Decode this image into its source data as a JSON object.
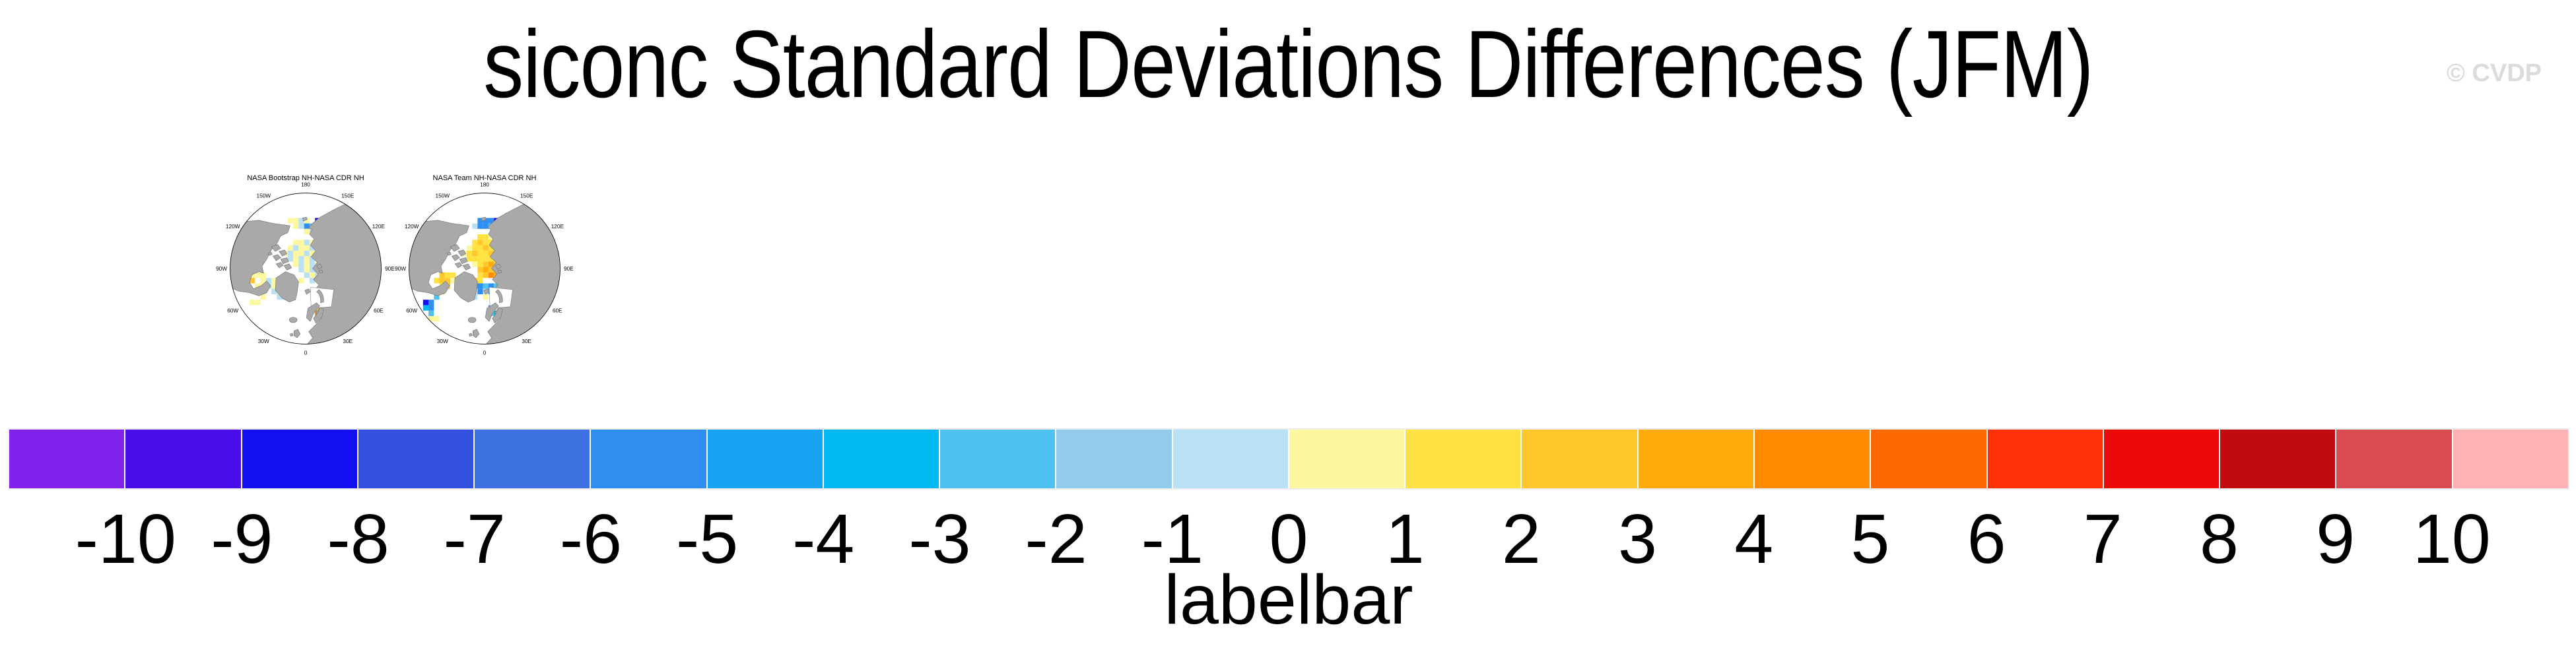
{
  "header": {
    "title": "siconc Standard Deviations Differences (JFM)",
    "watermark": "© CVDP"
  },
  "maps": [
    {
      "title": "NASA Bootstrap NH-NASA CDR NH",
      "ring_labels": [
        "180",
        "150E",
        "120E",
        "90E",
        "60E",
        "30E",
        "0",
        "30W",
        "60W",
        "90W",
        "120W",
        "150W"
      ],
      "cells": [
        [
          20,
          3,
          11
        ],
        [
          21,
          3,
          11
        ],
        [
          19,
          4,
          11
        ],
        [
          21,
          4,
          13
        ],
        [
          22,
          4,
          15
        ],
        [
          23,
          5,
          11
        ],
        [
          11,
          5,
          11
        ],
        [
          12,
          5,
          11
        ],
        [
          13,
          5,
          10
        ],
        [
          14,
          5,
          11
        ],
        [
          16,
          5,
          2
        ],
        [
          17,
          5,
          10
        ],
        [
          18,
          5,
          10
        ],
        [
          12,
          6,
          11
        ],
        [
          13,
          6,
          10
        ],
        [
          14,
          6,
          5
        ],
        [
          15,
          6,
          8
        ],
        [
          16,
          6,
          10
        ],
        [
          17,
          6,
          10
        ],
        [
          18,
          6,
          10
        ],
        [
          19,
          6,
          11
        ],
        [
          14,
          7,
          11
        ],
        [
          15,
          7,
          10
        ],
        [
          16,
          7,
          10
        ],
        [
          17,
          7,
          10
        ],
        [
          18,
          7,
          11
        ],
        [
          12,
          9,
          11
        ],
        [
          13,
          9,
          11
        ],
        [
          14,
          9,
          10
        ],
        [
          15,
          9,
          11
        ],
        [
          11,
          10,
          11
        ],
        [
          12,
          10,
          10
        ],
        [
          13,
          10,
          11
        ],
        [
          14,
          10,
          11
        ],
        [
          15,
          10,
          10
        ],
        [
          16,
          10,
          11
        ],
        [
          10,
          11,
          11
        ],
        [
          11,
          11,
          10
        ],
        [
          12,
          11,
          11
        ],
        [
          13,
          11,
          11
        ],
        [
          14,
          11,
          10
        ],
        [
          15,
          11,
          11
        ],
        [
          16,
          11,
          10
        ],
        [
          11,
          12,
          10
        ],
        [
          12,
          12,
          11
        ],
        [
          13,
          12,
          10
        ],
        [
          14,
          12,
          11
        ],
        [
          15,
          12,
          10
        ],
        [
          16,
          12,
          11
        ],
        [
          17,
          12,
          10
        ],
        [
          12,
          13,
          11
        ],
        [
          13,
          13,
          10
        ],
        [
          14,
          13,
          11
        ],
        [
          15,
          13,
          10
        ],
        [
          16,
          13,
          11
        ],
        [
          17,
          13,
          10
        ],
        [
          13,
          14,
          10
        ],
        [
          14,
          14,
          11
        ],
        [
          15,
          14,
          10
        ],
        [
          16,
          14,
          10
        ],
        [
          17,
          14,
          11
        ],
        [
          18,
          14,
          10
        ],
        [
          14,
          15,
          10
        ],
        [
          15,
          15,
          11
        ],
        [
          16,
          15,
          10
        ],
        [
          17,
          15,
          10
        ],
        [
          13,
          16,
          11
        ],
        [
          15,
          16,
          10
        ],
        [
          16,
          16,
          11
        ],
        [
          4,
          15,
          11
        ],
        [
          5,
          15,
          11
        ],
        [
          6,
          15,
          11
        ],
        [
          4,
          16,
          13
        ],
        [
          6,
          16,
          11
        ],
        [
          5,
          17,
          11
        ],
        [
          6,
          17,
          11
        ],
        [
          7,
          16,
          10
        ],
        [
          8,
          16,
          11
        ],
        [
          7,
          17,
          10
        ],
        [
          8,
          17,
          11
        ],
        [
          9,
          17,
          10
        ],
        [
          8,
          18,
          10
        ],
        [
          9,
          18,
          11
        ],
        [
          9,
          19,
          10
        ],
        [
          10,
          19,
          10
        ],
        [
          10,
          18,
          11
        ],
        [
          4,
          20,
          11
        ],
        [
          5,
          20,
          11
        ],
        [
          6,
          19,
          11
        ],
        [
          17,
          18,
          8
        ],
        [
          18,
          19,
          5
        ],
        [
          16,
          18,
          10
        ],
        [
          15,
          18,
          11
        ],
        [
          16,
          21,
          12
        ],
        [
          16,
          22,
          15
        ]
      ]
    },
    {
      "title": "NASA Team NH-NASA CDR NH",
      "ring_labels": [
        "180",
        "150E",
        "120E",
        "90E",
        "60E",
        "30E",
        "0",
        "30W",
        "60W",
        "90W",
        "120W",
        "150W"
      ],
      "cells": [
        [
          21,
          4,
          12
        ],
        [
          22,
          4,
          10
        ],
        [
          22,
          5,
          8
        ],
        [
          23,
          5,
          10
        ],
        [
          19,
          4,
          11
        ],
        [
          18,
          4,
          10
        ],
        [
          13,
          5,
          5
        ],
        [
          14,
          5,
          5
        ],
        [
          15,
          5,
          5
        ],
        [
          16,
          5,
          2
        ],
        [
          17,
          5,
          5
        ],
        [
          18,
          5,
          8
        ],
        [
          19,
          5,
          10
        ],
        [
          20,
          5,
          11
        ],
        [
          12,
          6,
          10
        ],
        [
          13,
          6,
          5
        ],
        [
          14,
          6,
          5
        ],
        [
          15,
          6,
          8
        ],
        [
          16,
          6,
          5
        ],
        [
          17,
          6,
          8
        ],
        [
          18,
          6,
          5
        ],
        [
          19,
          6,
          8
        ],
        [
          20,
          6,
          10
        ],
        [
          16,
          7,
          8
        ],
        [
          17,
          7,
          5
        ],
        [
          18,
          7,
          8
        ],
        [
          19,
          7,
          5
        ],
        [
          20,
          7,
          17
        ],
        [
          21,
          7,
          16
        ],
        [
          13,
          8,
          12
        ],
        [
          14,
          8,
          12
        ],
        [
          15,
          8,
          11
        ],
        [
          12,
          9,
          12
        ],
        [
          13,
          9,
          13
        ],
        [
          14,
          9,
          12
        ],
        [
          15,
          9,
          12
        ],
        [
          16,
          9,
          11
        ],
        [
          17,
          9,
          11
        ],
        [
          11,
          10,
          11
        ],
        [
          12,
          10,
          12
        ],
        [
          13,
          10,
          12
        ],
        [
          14,
          10,
          13
        ],
        [
          15,
          10,
          12
        ],
        [
          16,
          10,
          12
        ],
        [
          17,
          10,
          12
        ],
        [
          18,
          10,
          11
        ],
        [
          10,
          11,
          11
        ],
        [
          11,
          11,
          12
        ],
        [
          12,
          11,
          13
        ],
        [
          13,
          11,
          12
        ],
        [
          14,
          11,
          12
        ],
        [
          15,
          11,
          13
        ],
        [
          16,
          11,
          12
        ],
        [
          17,
          11,
          12
        ],
        [
          18,
          11,
          12
        ],
        [
          19,
          11,
          11
        ],
        [
          11,
          12,
          12
        ],
        [
          12,
          12,
          12
        ],
        [
          13,
          12,
          12
        ],
        [
          14,
          12,
          12
        ],
        [
          15,
          12,
          12
        ],
        [
          16,
          12,
          13
        ],
        [
          17,
          12,
          12
        ],
        [
          18,
          12,
          12
        ],
        [
          19,
          12,
          12
        ],
        [
          12,
          13,
          11
        ],
        [
          13,
          13,
          12
        ],
        [
          14,
          13,
          13
        ],
        [
          15,
          13,
          14
        ],
        [
          16,
          13,
          13
        ],
        [
          17,
          13,
          12
        ],
        [
          18,
          13,
          12
        ],
        [
          19,
          13,
          12
        ],
        [
          20,
          13,
          11
        ],
        [
          13,
          14,
          13
        ],
        [
          14,
          14,
          14
        ],
        [
          15,
          14,
          13
        ],
        [
          16,
          14,
          14
        ],
        [
          17,
          14,
          13
        ],
        [
          18,
          14,
          12
        ],
        [
          19,
          14,
          12
        ],
        [
          13,
          15,
          12
        ],
        [
          14,
          15,
          13
        ],
        [
          15,
          15,
          15
        ],
        [
          16,
          15,
          14
        ],
        [
          17,
          15,
          13
        ],
        [
          18,
          15,
          13
        ],
        [
          19,
          15,
          12
        ],
        [
          12,
          16,
          13
        ],
        [
          13,
          16,
          12
        ],
        [
          18,
          16,
          13
        ],
        [
          19,
          16,
          12
        ],
        [
          6,
          15,
          13
        ],
        [
          7,
          15,
          12
        ],
        [
          8,
          15,
          12
        ],
        [
          5,
          16,
          12
        ],
        [
          6,
          16,
          13
        ],
        [
          7,
          16,
          13
        ],
        [
          8,
          16,
          11
        ],
        [
          6,
          17,
          12
        ],
        [
          7,
          17,
          13
        ],
        [
          9,
          16,
          14
        ],
        [
          10,
          17,
          14
        ],
        [
          11,
          17,
          13
        ],
        [
          12,
          17,
          5
        ],
        [
          13,
          17,
          5
        ],
        [
          14,
          17,
          8
        ],
        [
          15,
          17,
          5
        ],
        [
          16,
          17,
          8
        ],
        [
          17,
          17,
          5
        ],
        [
          18,
          17,
          10
        ],
        [
          19,
          17,
          8
        ],
        [
          11,
          18,
          8
        ],
        [
          12,
          18,
          10
        ],
        [
          13,
          18,
          5
        ],
        [
          14,
          18,
          10
        ],
        [
          15,
          18,
          5
        ],
        [
          16,
          18,
          8
        ],
        [
          17,
          18,
          5
        ],
        [
          18,
          18,
          5
        ],
        [
          19,
          18,
          10
        ],
        [
          20,
          18,
          10
        ],
        [
          12,
          19,
          10
        ],
        [
          14,
          19,
          11
        ],
        [
          16,
          19,
          5
        ],
        [
          3,
          20,
          2
        ],
        [
          4,
          20,
          5
        ],
        [
          3,
          21,
          7
        ],
        [
          4,
          21,
          5
        ],
        [
          4,
          22,
          8
        ],
        [
          5,
          19,
          8
        ],
        [
          5,
          18,
          5
        ],
        [
          6,
          18,
          13
        ],
        [
          4,
          23,
          11
        ],
        [
          5,
          23,
          11
        ],
        [
          15,
          21,
          5
        ],
        [
          15,
          22,
          8
        ],
        [
          16,
          22,
          7
        ]
      ]
    }
  ],
  "labelbar": {
    "title": "labelbar",
    "tick_labels": [
      "-10",
      "-9",
      "-8",
      "-7",
      "-6",
      "-5",
      "-4",
      "-3",
      "-2",
      "-1",
      "0",
      "1",
      "2",
      "3",
      "4",
      "5",
      "6",
      "7",
      "8",
      "9",
      "10"
    ],
    "colors": [
      "#8021EE",
      "#4A0FE8",
      "#1210EE",
      "#3350DE",
      "#3D70E0",
      "#2F8EF0",
      "#15A3F2",
      "#00B9F2",
      "#4FC2F0",
      "#93CBEA",
      "#BAE0F5",
      "#FDF8A0",
      "#FFE142",
      "#FFC72B",
      "#FFAB0A",
      "#FF8C00",
      "#FF6A00",
      "#FF3008",
      "#EC0A08",
      "#C00A10",
      "#D84B50",
      "#FFB2B5"
    ]
  },
  "chart_data": {
    "type": "heatmap",
    "title": "siconc Standard Deviations Differences (JFM)",
    "panels": [
      "NASA Bootstrap NH-NASA CDR NH",
      "NASA Team NH-NASA CDR NH"
    ],
    "projection": "north-polar-stereographic",
    "ring_labels": [
      "180",
      "150E",
      "120E",
      "90E",
      "60E",
      "30E",
      "0",
      "30W",
      "60W",
      "90W",
      "120W",
      "150W"
    ],
    "colorbar_title": "labelbar",
    "colorbar_tick_labels": [
      -10,
      -9,
      -8,
      -7,
      -6,
      -5,
      -4,
      -3,
      -2,
      -1,
      0,
      1,
      2,
      3,
      4,
      5,
      6,
      7,
      8,
      9,
      10
    ],
    "colorbar_colors": [
      "#8021EE",
      "#4A0FE8",
      "#1210EE",
      "#3350DE",
      "#3D70E0",
      "#2F8EF0",
      "#15A3F2",
      "#00B9F2",
      "#4FC2F0",
      "#93CBEA",
      "#BAE0F5",
      "#FDF8A0",
      "#FFE142",
      "#FFC72B",
      "#FFAB0A",
      "#FF8C00",
      "#FF6A00",
      "#FF3008",
      "#EC0A08",
      "#C00A10",
      "#D84B50",
      "#FFB2B5"
    ],
    "value_range": [
      -10,
      10
    ],
    "n_boxes": 22
  }
}
